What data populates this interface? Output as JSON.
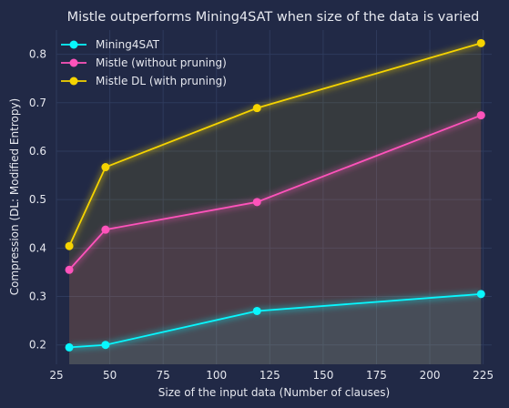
{
  "chart_data": {
    "type": "line",
    "title": "Mistle outperforms Mining4SAT when size of the data is varied",
    "xlabel": "Size of the input data (Number of clauses)",
    "ylabel": "Compression (DL: Modified Entropy)",
    "x": [
      31,
      48,
      119,
      224
    ],
    "xlim": [
      25,
      229
    ],
    "ylim": [
      0.16,
      0.85
    ],
    "xticks": [
      25,
      50,
      75,
      100,
      125,
      150,
      175,
      200,
      225
    ],
    "yticks": [
      0.2,
      0.3,
      0.4,
      0.5,
      0.6,
      0.7,
      0.8
    ],
    "grid": true,
    "legend_position": "top-left",
    "series": [
      {
        "name": "Mining4SAT",
        "color": "#08F7FE",
        "values": [
          0.195,
          0.2,
          0.27,
          0.305
        ]
      },
      {
        "name": "Mistle (without pruning)",
        "color": "#FE53BB",
        "values": [
          0.355,
          0.438,
          0.495,
          0.674
        ]
      },
      {
        "name": "Mistle DL (with pruning)",
        "color": "#F5D300",
        "values": [
          0.404,
          0.567,
          0.689,
          0.823
        ]
      }
    ]
  }
}
